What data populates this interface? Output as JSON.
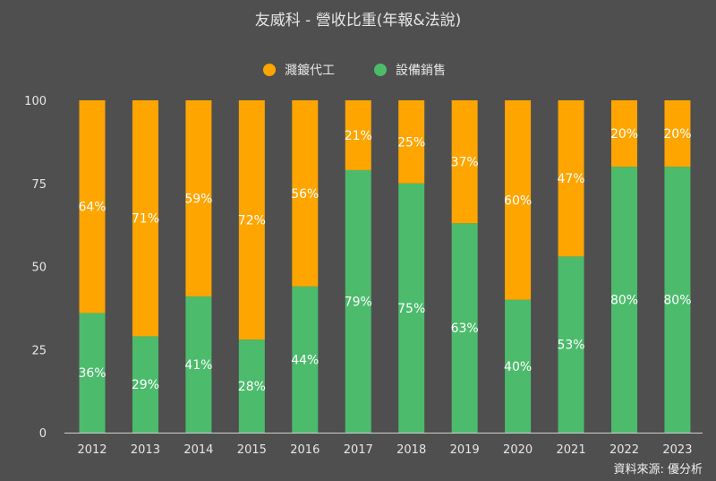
{
  "chart_data": {
    "type": "bar",
    "stacked": true,
    "title": "友威科 - 營收比重(年報&法說)",
    "source": "資料來源: 優分析",
    "categories": [
      "2012",
      "2013",
      "2014",
      "2015",
      "2016",
      "2017",
      "2018",
      "2019",
      "2020",
      "2021",
      "2022",
      "2023"
    ],
    "series": [
      {
        "name": "設備銷售",
        "color": "#4cbb6c",
        "values": [
          36,
          29,
          41,
          28,
          44,
          79,
          75,
          63,
          40,
          53,
          80,
          80
        ]
      },
      {
        "name": "濺鍍代工",
        "color": "#ffa500",
        "values": [
          64,
          71,
          59,
          72,
          56,
          21,
          25,
          37,
          60,
          47,
          20,
          20
        ]
      }
    ],
    "legend_order": [
      1,
      0
    ],
    "legend_position": "top",
    "ylim": [
      0,
      100
    ],
    "yticks": [
      0,
      25,
      50,
      75,
      100
    ],
    "data_label_suffix": "%",
    "grid": false
  }
}
